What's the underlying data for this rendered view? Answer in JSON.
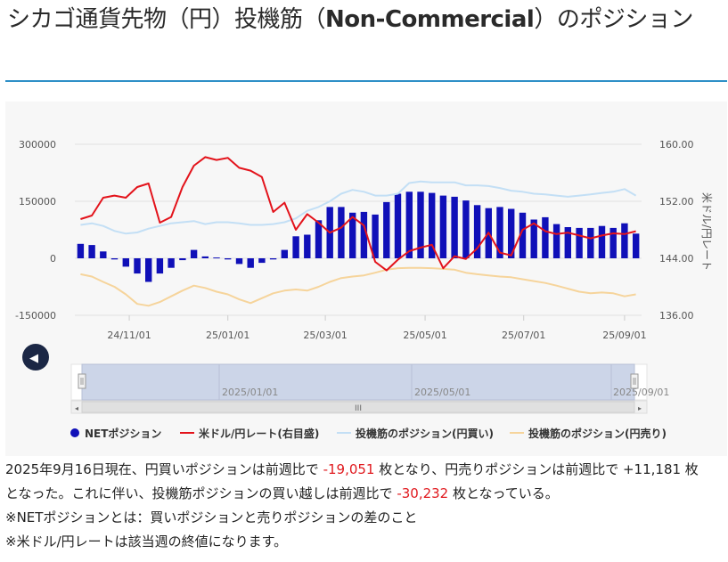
{
  "page": {
    "title_pre": "シカゴ通貨先物（円）投機筋（",
    "title_bold": "Non-Commercial",
    "title_post": "）のポジション"
  },
  "colors": {
    "net": "#1010b8",
    "rate": "#e3131b",
    "long": "#c3dff5",
    "short": "#f6d49b",
    "accent": "#2e8fc7"
  },
  "navigator": {
    "labels": [
      "2025/01/01",
      "2025/05/01",
      "2025/09/01"
    ],
    "scroll_grip": "III",
    "left_arrow": "◀"
  },
  "chart_data": {
    "type": "bar+line",
    "x_tick_labels": [
      "24/11/01",
      "25/01/01",
      "25/03/01",
      "25/05/01",
      "25/07/01",
      "25/09/01"
    ],
    "y_left_ticks": [
      "300000",
      "150000",
      "0",
      "-150000"
    ],
    "y_right_ticks": [
      "160.00",
      "152.00",
      "144.00",
      "136.00"
    ],
    "y_right_label": "米ドル/円レート",
    "ylim_left": [
      -150000,
      300000
    ],
    "ylim_right": [
      136,
      160
    ],
    "legend_position": "bottom",
    "series": [
      {
        "name": "NETポジション",
        "kind": "bar",
        "values": [
          38000,
          35000,
          18000,
          -3000,
          -22000,
          -40000,
          -62000,
          -40000,
          -25000,
          -5000,
          22000,
          5000,
          2000,
          -3000,
          -15000,
          -25000,
          -12000,
          -3000,
          22000,
          58000,
          62000,
          100000,
          135000,
          135000,
          120000,
          122000,
          115000,
          148000,
          170000,
          175000,
          175000,
          172000,
          165000,
          162000,
          152000,
          140000,
          132000,
          135000,
          130000,
          120000,
          102000,
          108000,
          90000,
          82000,
          80000,
          80000,
          85000,
          80000,
          92000,
          65000
        ]
      },
      {
        "name": "米ドル/円レート(右目盛)",
        "kind": "line",
        "values": [
          149.5,
          150.0,
          152.5,
          152.8,
          152.5,
          154.0,
          154.5,
          149.0,
          149.8,
          154.0,
          157.0,
          158.2,
          157.8,
          158.1,
          156.7,
          156.3,
          155.4,
          150.5,
          151.8,
          148.0,
          150.2,
          149.0,
          147.6,
          148.3,
          149.8,
          148.6,
          143.5,
          142.3,
          143.8,
          145.0,
          145.5,
          145.9,
          142.6,
          144.3,
          143.9,
          145.4,
          147.6,
          144.8,
          144.4,
          148.0,
          148.9,
          147.8,
          147.4,
          147.6,
          147.2,
          146.8,
          147.2,
          147.5,
          147.4,
          147.8
        ]
      },
      {
        "name": "投機筋のポジション(円買い)",
        "kind": "line",
        "values": [
          88000,
          92000,
          85000,
          72000,
          65000,
          68000,
          78000,
          85000,
          92000,
          95000,
          98000,
          90000,
          95000,
          95000,
          92000,
          88000,
          88000,
          90000,
          95000,
          105000,
          125000,
          135000,
          150000,
          170000,
          180000,
          175000,
          165000,
          165000,
          170000,
          198000,
          202000,
          200000,
          200000,
          200000,
          192000,
          192000,
          190000,
          185000,
          178000,
          175000,
          170000,
          168000,
          165000,
          162000,
          165000,
          168000,
          172000,
          175000,
          182000,
          165000
        ]
      },
      {
        "name": "投機筋のポジション(円売り)",
        "kind": "line",
        "values": [
          -42000,
          -48000,
          -62000,
          -75000,
          -95000,
          -120000,
          -125000,
          -115000,
          -100000,
          -85000,
          -72000,
          -78000,
          -88000,
          -95000,
          -108000,
          -118000,
          -105000,
          -92000,
          -85000,
          -82000,
          -85000,
          -75000,
          -62000,
          -52000,
          -48000,
          -45000,
          -38000,
          -30000,
          -26000,
          -25000,
          -25000,
          -26000,
          -28000,
          -30000,
          -38000,
          -42000,
          -45000,
          -48000,
          -50000,
          -55000,
          -60000,
          -65000,
          -72000,
          -80000,
          -88000,
          -92000,
          -90000,
          -92000,
          -100000,
          -95000
        ]
      }
    ]
  },
  "description": {
    "p1_a": "2025年9月16日現在、円買いポジションは前週比で ",
    "p1_b": "-19,051",
    "p1_c": " 枚となり、円売りポジションは前週比で +11,181 枚",
    "p2_a": "となった。これに伴い、投機筋ポジションの買い越しは前週比で ",
    "p2_b": "-30,232",
    "p2_c": " 枚となっている。",
    "p3": "※NETポジションとは：買いポジションと売りポジションの差のこと",
    "p4": "※米ドル/円レートは該当週の終値になります。"
  }
}
